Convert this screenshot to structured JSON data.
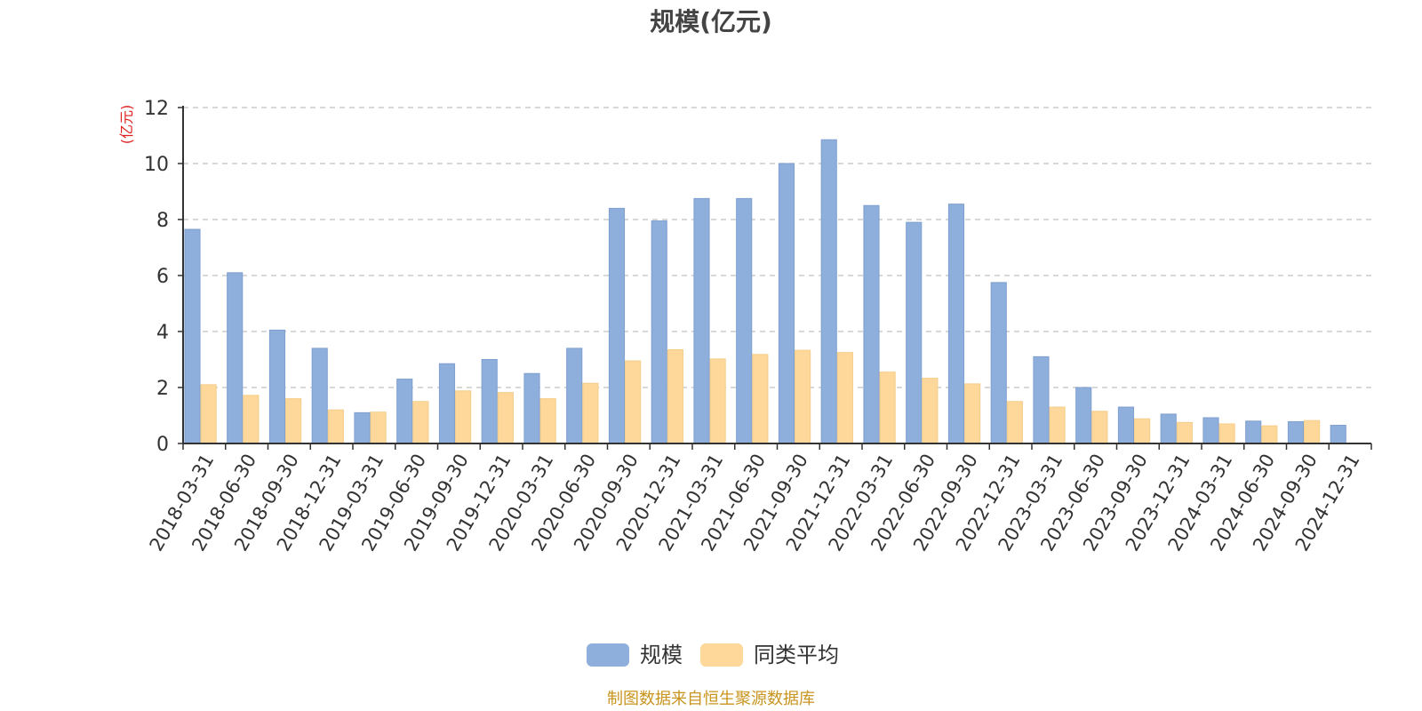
{
  "chart_data": {
    "type": "bar",
    "title": "规模(亿元)",
    "ylabel": "(亿元)",
    "xlabel": "",
    "ylim": [
      0,
      12
    ],
    "yticks": [
      0,
      2,
      4,
      6,
      8,
      10,
      12
    ],
    "grid": "horizontal-dashed",
    "legend_position": "bottom-center",
    "categories": [
      "2018-03-31",
      "2018-06-30",
      "2018-09-30",
      "2018-12-31",
      "2019-03-31",
      "2019-06-30",
      "2019-09-30",
      "2019-12-31",
      "2020-03-31",
      "2020-06-30",
      "2020-09-30",
      "2020-12-31",
      "2021-03-31",
      "2021-06-30",
      "2021-09-30",
      "2021-12-31",
      "2022-03-31",
      "2022-06-30",
      "2022-09-30",
      "2022-12-31",
      "2023-03-31",
      "2023-06-30",
      "2023-09-30",
      "2023-12-31",
      "2024-03-31",
      "2024-06-30",
      "2024-09-30",
      "2024-12-31"
    ],
    "series": [
      {
        "name": "规模",
        "color": "#8eaedb",
        "values": [
          7.65,
          6.1,
          4.05,
          3.4,
          1.1,
          2.3,
          2.85,
          3.0,
          2.5,
          3.4,
          8.4,
          7.95,
          8.75,
          8.75,
          10.0,
          10.85,
          8.5,
          7.9,
          8.55,
          5.75,
          3.1,
          2.0,
          1.3,
          1.05,
          0.92,
          0.8,
          0.78,
          0.65
        ]
      },
      {
        "name": "同类平均",
        "color": "#fdd89a",
        "values": [
          2.1,
          1.72,
          1.6,
          1.2,
          1.12,
          1.5,
          1.88,
          1.82,
          1.6,
          2.15,
          2.95,
          3.35,
          3.02,
          3.18,
          3.33,
          3.25,
          2.55,
          2.33,
          2.13,
          1.5,
          1.3,
          1.15,
          0.88,
          0.75,
          0.7,
          0.63,
          0.82,
          null
        ]
      }
    ],
    "source_note": "制图数据来自恒生聚源数据库",
    "colors": {
      "unit_label": "#e02020",
      "source_note": "#c8941e",
      "axis": "#333333",
      "grid": "#cccccc"
    }
  }
}
